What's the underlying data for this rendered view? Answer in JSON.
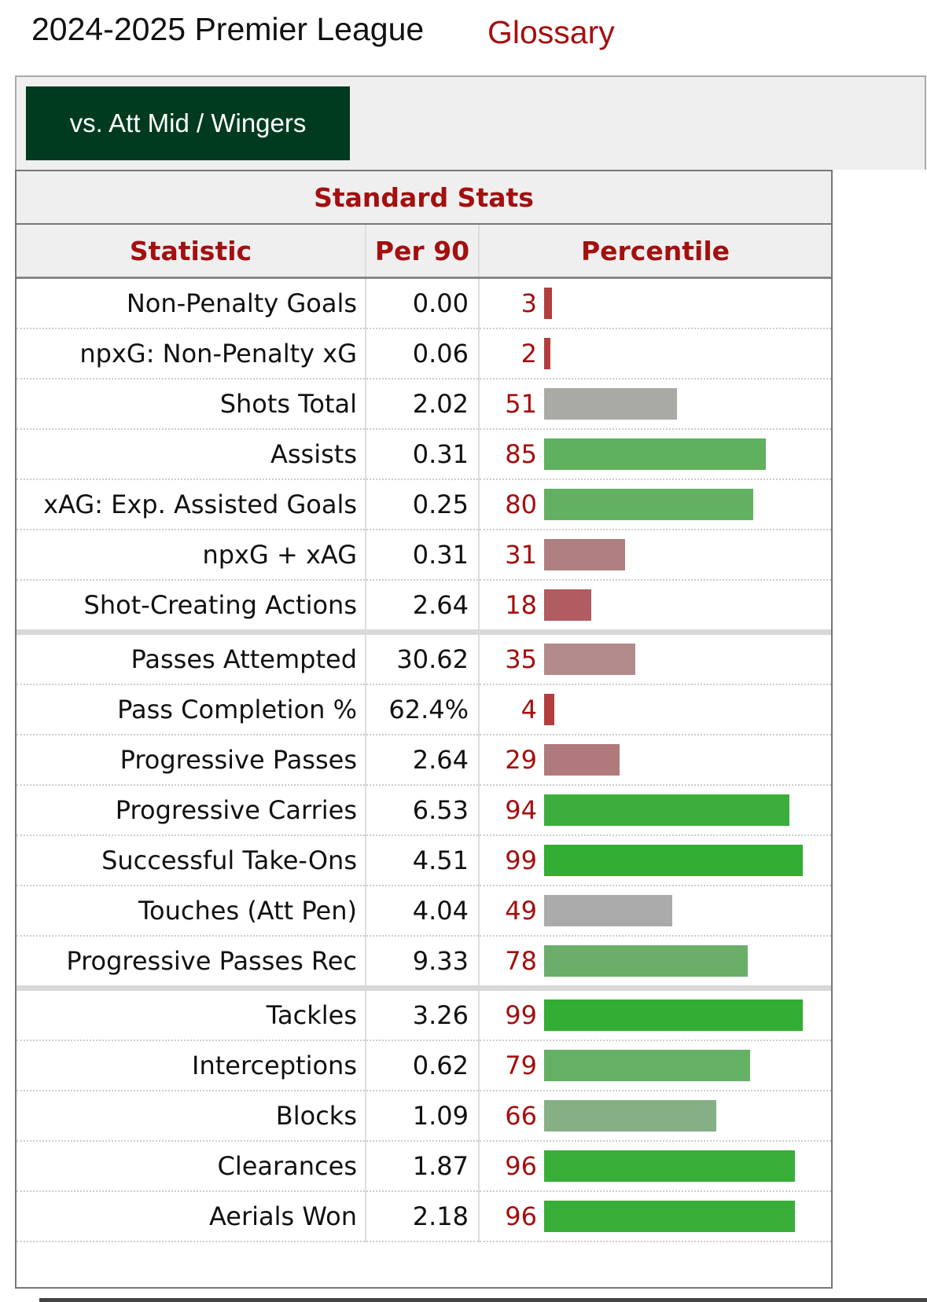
{
  "header": {
    "title": "2024-2025 Premier League",
    "glossary_label": "Glossary"
  },
  "tab": {
    "label": "vs. Att Mid / Wingers"
  },
  "table": {
    "caption": "Standard Stats",
    "columns": [
      "Statistic",
      "Per 90",
      "Percentile"
    ],
    "colors": {
      "high": "#33ad33",
      "mid_high": "#66b266",
      "neutral": "#aaaaaa",
      "mid_low": "#b27d80",
      "low": "#b34747"
    },
    "groups": [
      [
        {
          "stat": "Non-Penalty Goals",
          "per90": "0.00",
          "percentile": 3,
          "color": "#b33d3d"
        },
        {
          "stat": "npxG: Non-Penalty xG",
          "per90": "0.06",
          "percentile": 2,
          "color": "#b33d3d"
        },
        {
          "stat": "Shots Total",
          "per90": "2.02",
          "percentile": 51,
          "color": "#a9aaa6"
        },
        {
          "stat": "Assists",
          "per90": "0.31",
          "percentile": 85,
          "color": "#5fb05f"
        },
        {
          "stat": "xAG: Exp. Assisted Goals",
          "per90": "0.25",
          "percentile": 80,
          "color": "#62b062"
        },
        {
          "stat": "npxG + xAG",
          "per90": "0.31",
          "percentile": 31,
          "color": "#b07f80"
        },
        {
          "stat": "Shot-Creating Actions",
          "per90": "2.64",
          "percentile": 18,
          "color": "#b05c60"
        }
      ],
      [
        {
          "stat": "Passes Attempted",
          "per90": "30.62",
          "percentile": 35,
          "color": "#b38a8c"
        },
        {
          "stat": "Pass Completion %",
          "per90": "62.4%",
          "percentile": 4,
          "color": "#b33d3d"
        },
        {
          "stat": "Progressive Passes",
          "per90": "2.64",
          "percentile": 29,
          "color": "#b07a7c"
        },
        {
          "stat": "Progressive Carries",
          "per90": "6.53",
          "percentile": 94,
          "color": "#3bae3b"
        },
        {
          "stat": "Successful Take-Ons",
          "per90": "4.51",
          "percentile": 99,
          "color": "#33ad33"
        },
        {
          "stat": "Touches (Att Pen)",
          "per90": "4.04",
          "percentile": 49,
          "color": "#ababab"
        },
        {
          "stat": "Progressive Passes Rec",
          "per90": "9.33",
          "percentile": 78,
          "color": "#6aae6a"
        }
      ],
      [
        {
          "stat": "Tackles",
          "per90": "3.26",
          "percentile": 99,
          "color": "#33ad33"
        },
        {
          "stat": "Interceptions",
          "per90": "0.62",
          "percentile": 79,
          "color": "#64b064"
        },
        {
          "stat": "Blocks",
          "per90": "1.09",
          "percentile": 66,
          "color": "#86af86"
        },
        {
          "stat": "Clearances",
          "per90": "1.87",
          "percentile": 96,
          "color": "#38ae38"
        },
        {
          "stat": "Aerials Won",
          "per90": "2.18",
          "percentile": 96,
          "color": "#38ae38"
        }
      ]
    ]
  }
}
